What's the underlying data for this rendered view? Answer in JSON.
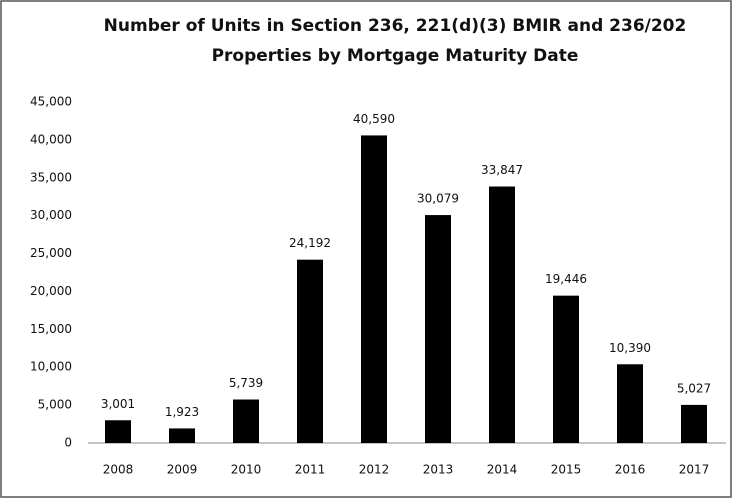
{
  "chart_data": {
    "type": "bar",
    "title": [
      "Number of Units in Section 236, 221(d)(3) BMIR and 236/202",
      "Properties by Mortgage Maturity Date"
    ],
    "categories": [
      "2008",
      "2009",
      "2010",
      "2011",
      "2012",
      "2013",
      "2014",
      "2015",
      "2016",
      "2017"
    ],
    "values": [
      3001,
      1923,
      5739,
      24192,
      40590,
      30079,
      33847,
      19446,
      10390,
      5027
    ],
    "value_labels": [
      "3,001",
      "1,923",
      "5,739",
      "24,192",
      "40,590",
      "30,079",
      "33,847",
      "19,446",
      "10,390",
      "5,027"
    ],
    "color": "#000000",
    "ylim": [
      0,
      45000
    ],
    "yticks": [
      0,
      {
        "value": 5000,
        "label": "5,000"
      },
      {
        "value": 10000,
        "label": "10,000"
      },
      {
        "value": 15000,
        "label": "15,000"
      },
      {
        "value": 20000,
        "label": "20,000"
      },
      {
        "value": 25000,
        "label": "25,000"
      },
      {
        "value": 30000,
        "label": "30,000"
      },
      {
        "value": 35000,
        "label": "35,000"
      },
      {
        "value": 40000,
        "label": "40,000"
      },
      {
        "value": 45000,
        "label": "45,000"
      }
    ],
    "grid": false
  }
}
